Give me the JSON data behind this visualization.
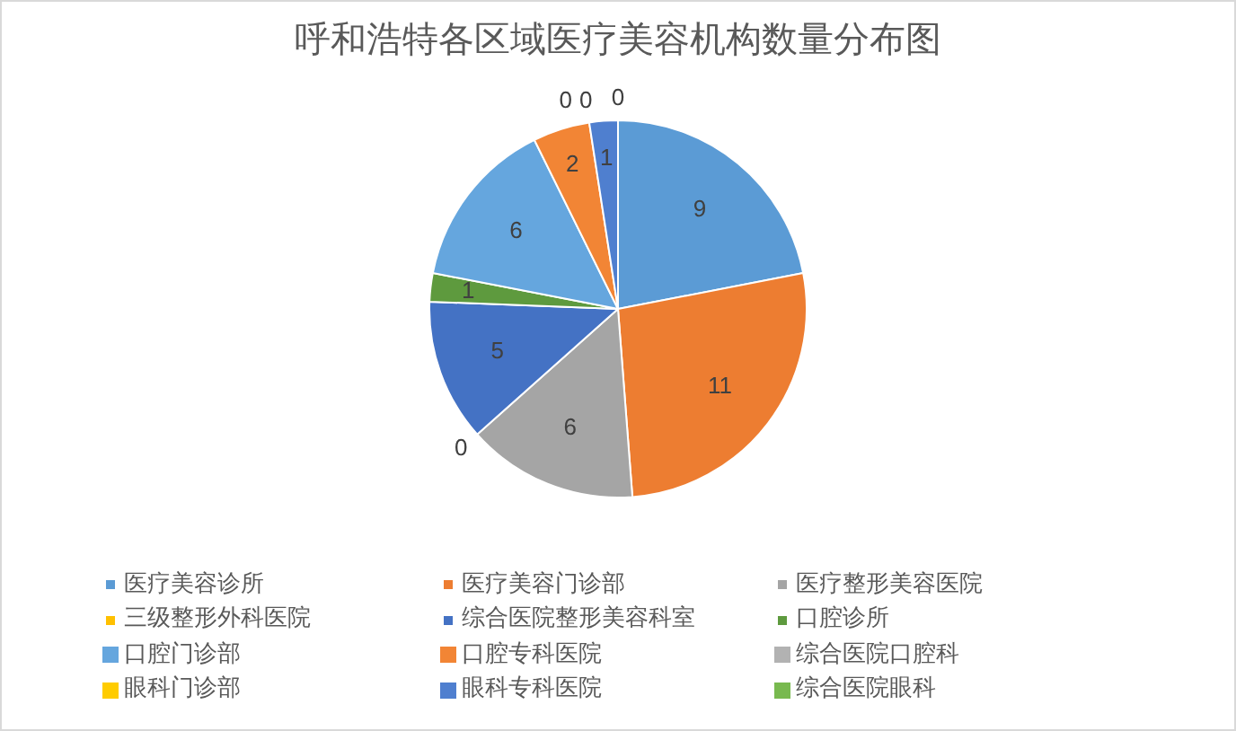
{
  "chart_data": {
    "type": "pie",
    "title": "呼和浩特各区域医疗美容机构数量分布图",
    "categories": [
      "医疗美容诊所",
      "医疗美容门诊部",
      "医疗整形美容医院",
      "三级整形外科医院",
      "综合医院整形美容科室",
      "口腔诊所",
      "口腔门诊部",
      "口腔专科医院",
      "综合医院口腔科",
      "眼科门诊部",
      "眼科专科医院",
      "综合医院眼科"
    ],
    "values": [
      9,
      11,
      6,
      0,
      5,
      1,
      6,
      2,
      0,
      0,
      1,
      0
    ],
    "value_labels": [
      "9",
      "11",
      "6",
      "0",
      "5",
      "1",
      "6",
      "2",
      "0",
      "0",
      "1",
      "0"
    ],
    "colors": [
      "#5b9bd5",
      "#ed7d31",
      "#a5a5a5",
      "#ffc000",
      "#4472c4",
      "#5e9a3e",
      "#65a6de",
      "#f28535",
      "#b2b2b2",
      "#ffcc00",
      "#4f7fcf",
      "#78b94f"
    ],
    "legend": "bottom"
  }
}
